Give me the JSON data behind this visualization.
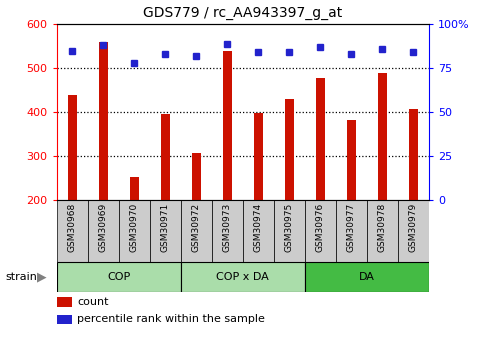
{
  "title": "GDS779 / rc_AA943397_g_at",
  "samples": [
    "GSM30968",
    "GSM30969",
    "GSM30970",
    "GSM30971",
    "GSM30972",
    "GSM30973",
    "GSM30974",
    "GSM30975",
    "GSM30976",
    "GSM30977",
    "GSM30978",
    "GSM30979"
  ],
  "counts": [
    440,
    560,
    252,
    395,
    307,
    540,
    397,
    430,
    478,
    382,
    490,
    407
  ],
  "percentile_ranks": [
    85,
    88,
    78,
    83,
    82,
    89,
    84,
    84,
    87,
    83,
    86,
    84
  ],
  "groups": [
    {
      "label": "COP",
      "start": 0,
      "end": 3,
      "color": "#aaddaa"
    },
    {
      "label": "COP x DA",
      "start": 4,
      "end": 7,
      "color": "#aaddaa"
    },
    {
      "label": "DA",
      "start": 8,
      "end": 11,
      "color": "#44bb44"
    }
  ],
  "ylim_left": [
    200,
    600
  ],
  "ylim_right": [
    0,
    100
  ],
  "yticks_left": [
    200,
    300,
    400,
    500,
    600
  ],
  "yticks_right": [
    0,
    25,
    50,
    75,
    100
  ],
  "bar_color": "#cc1100",
  "dot_color": "#2222cc",
  "grid_color": "black",
  "bg_color": "#ffffff",
  "tick_bg_color": "#cccccc",
  "legend_count_label": "count",
  "legend_pct_label": "percentile rank within the sample",
  "strain_label": "strain"
}
